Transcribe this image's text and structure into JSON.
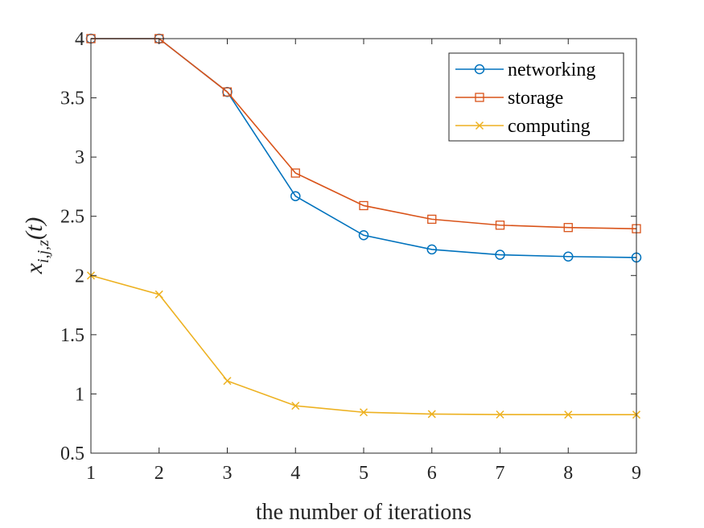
{
  "chart_data": {
    "type": "line",
    "title": "",
    "xlabel": "the number of iterations",
    "ylabel": "x_{i,j,z}(t)",
    "xlim": [
      1,
      9
    ],
    "ylim": [
      0.5,
      4
    ],
    "xticks": [
      "1",
      "2",
      "3",
      "4",
      "5",
      "6",
      "7",
      "8",
      "9"
    ],
    "yticks": [
      "0.5",
      "1",
      "1.5",
      "2",
      "2.5",
      "3",
      "3.5",
      "4"
    ],
    "grid": false,
    "legend_position": "top-right",
    "x": [
      1,
      2,
      3,
      4,
      5,
      6,
      7,
      8,
      9
    ],
    "series": [
      {
        "name": "networking",
        "color": "#0072BD",
        "marker": "circle",
        "values": [
          4.0,
          4.0,
          3.55,
          2.67,
          2.34,
          2.22,
          2.175,
          2.16,
          2.152
        ]
      },
      {
        "name": "storage",
        "color": "#D95319",
        "marker": "square",
        "values": [
          4.0,
          4.0,
          3.55,
          2.865,
          2.59,
          2.475,
          2.425,
          2.405,
          2.395
        ]
      },
      {
        "name": "computing",
        "color": "#EDB120",
        "marker": "x",
        "values": [
          2.0,
          1.84,
          1.11,
          0.9,
          0.845,
          0.83,
          0.826,
          0.825,
          0.825
        ]
      }
    ]
  }
}
